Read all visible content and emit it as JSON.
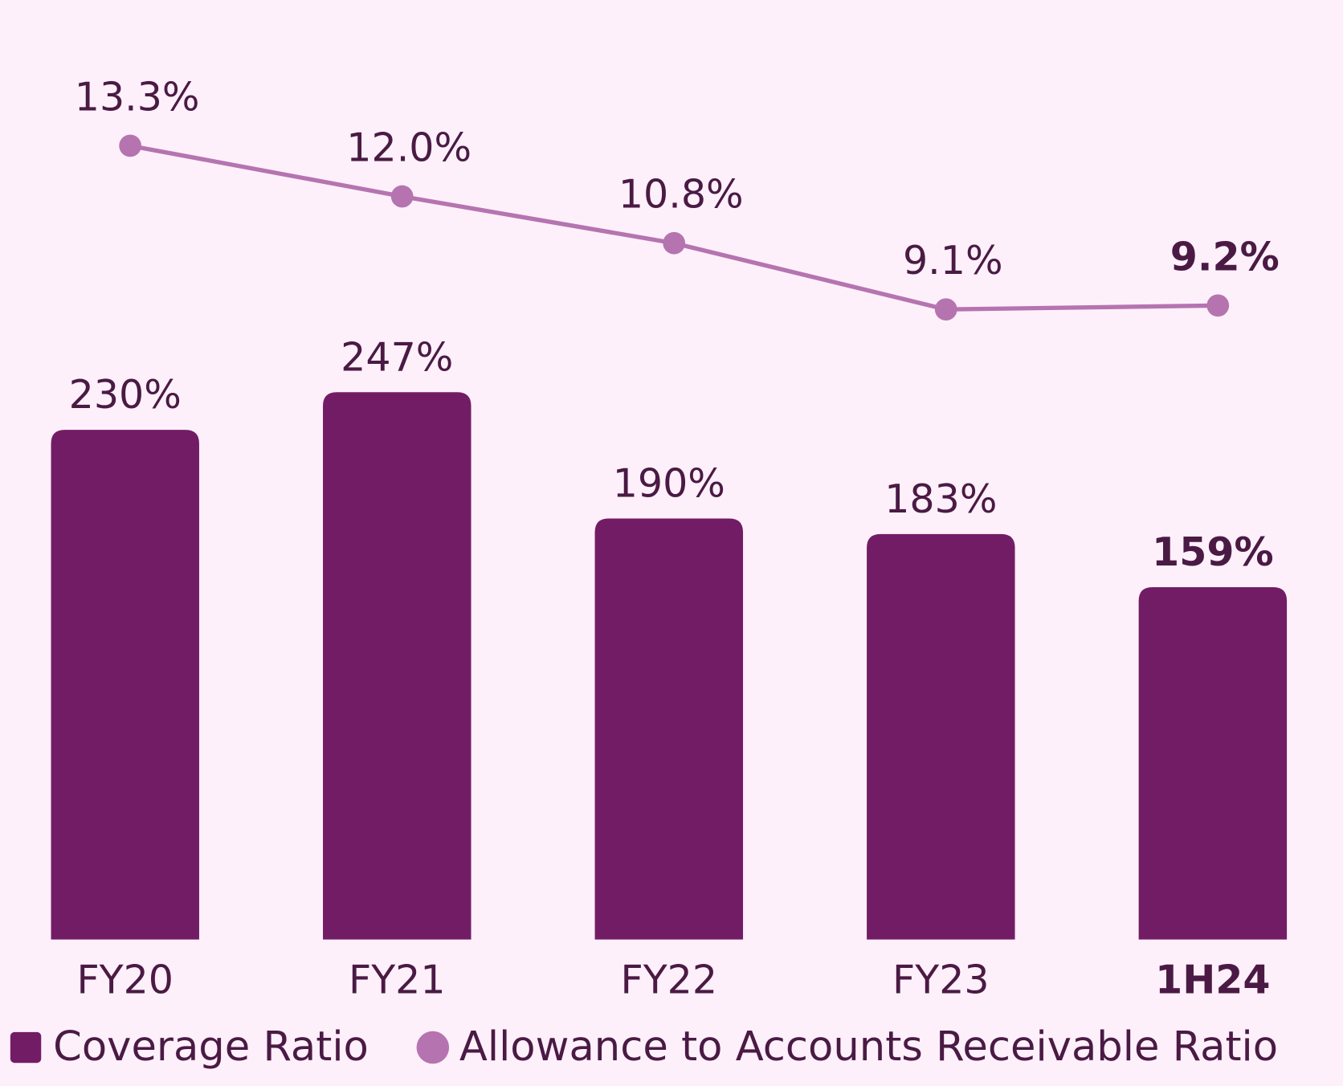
{
  "chart_data": {
    "type": "bar-line",
    "categories": [
      "FY20",
      "FY21",
      "FY22",
      "FY23",
      "1H24"
    ],
    "series": [
      {
        "name": "Coverage Ratio",
        "type": "bar",
        "color": "#731c66",
        "values": [
          230,
          247,
          190,
          183,
          159
        ],
        "value_labels": [
          "230%",
          "247%",
          "190%",
          "183%",
          "159%"
        ]
      },
      {
        "name": "Allowance to Accounts Receivable Ratio",
        "type": "line",
        "axis": "y2",
        "color": "#b574b0",
        "values": [
          13.3,
          12.0,
          10.8,
          9.1,
          9.2
        ],
        "value_labels": [
          "13.3%",
          "12.0%",
          "10.8%",
          "9.1%",
          "9.2%"
        ]
      }
    ],
    "ylim": [
      0,
      424
    ],
    "y2lim": [
      -7.07,
      17.04
    ]
  }
}
